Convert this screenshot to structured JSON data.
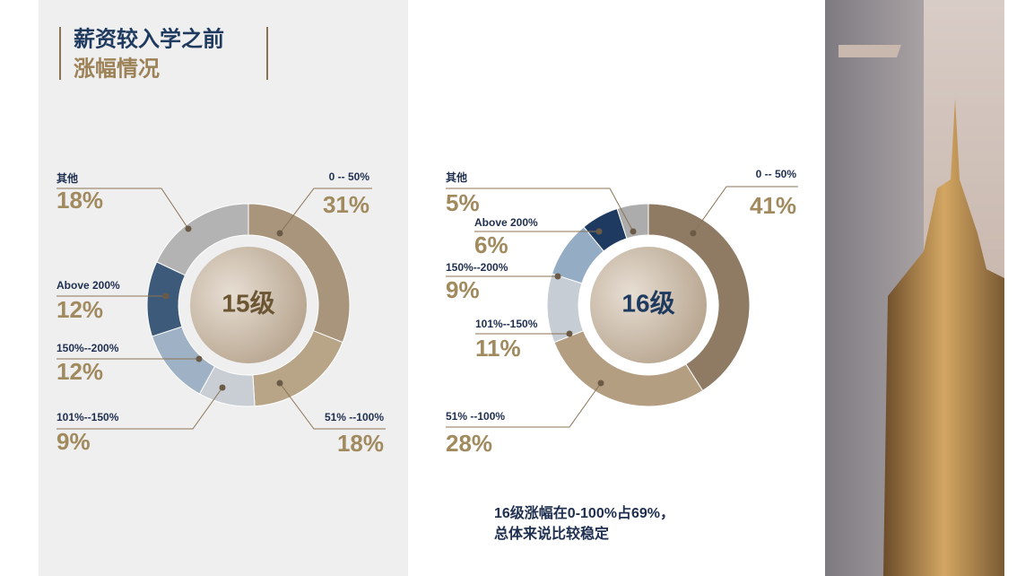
{
  "title": [
    "薪资较入学之前",
    "涨幅情况"
  ],
  "note": [
    "16级涨幅在0-100%占69%，",
    "总体来说比较稳定"
  ],
  "chart_data": [
    {
      "type": "donut",
      "center_label": "15级",
      "categories": [
        "0 -- 50%",
        "51% --100%",
        "101%--150%",
        "150%--200%",
        "Above 200%",
        "其他"
      ],
      "values": [
        31,
        18,
        9,
        12,
        12,
        18
      ],
      "value_labels": [
        "31%",
        "18%",
        "9%",
        "12%",
        "12%",
        "18%"
      ],
      "colors": [
        "#a8957c",
        "#b8a486",
        "#c9ced4",
        "#9fb2c5",
        "#3d5a7a",
        "#b3b3b3"
      ]
    },
    {
      "type": "donut",
      "center_label": "16级",
      "categories": [
        "0 -- 50%",
        "51% --100%",
        "101%--150%",
        "150%--200%",
        "Above 200%",
        "其他"
      ],
      "values": [
        41,
        28,
        11,
        9,
        6,
        5
      ],
      "value_labels": [
        "41%",
        "28%",
        "11%",
        "9%",
        "6%",
        "5%"
      ],
      "colors": [
        "#8f7b63",
        "#b39e82",
        "#c6cdd4",
        "#95adc4",
        "#1f3a60",
        "#acacac"
      ]
    }
  ]
}
